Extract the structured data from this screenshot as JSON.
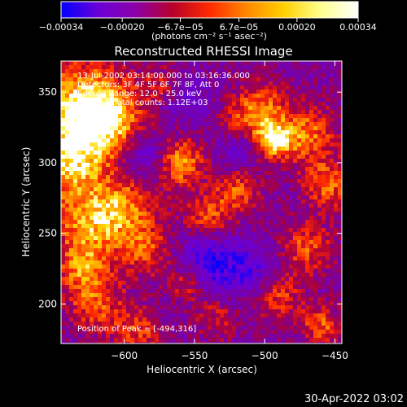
{
  "chart_data": {
    "type": "heatmap",
    "title": "Reconstructed RHESSI Image",
    "xlabel": "Heliocentric X (arcsec)",
    "ylabel": "Heliocentric Y (arcsec)",
    "xlim": [
      -645,
      -445
    ],
    "ylim": [
      172,
      372
    ],
    "x_ticks": [
      {
        "value": -600,
        "label": "−600"
      },
      {
        "value": -550,
        "label": "−550"
      },
      {
        "value": -500,
        "label": "−500"
      },
      {
        "value": -450,
        "label": "−450"
      }
    ],
    "y_ticks": [
      {
        "value": 200,
        "label": "200"
      },
      {
        "value": 250,
        "label": "250"
      },
      {
        "value": 300,
        "label": "300"
      },
      {
        "value": 350,
        "label": "350"
      }
    ],
    "colorbar": {
      "range": [
        -0.00034,
        0.00034
      ],
      "ticks": [
        {
          "value": -0.00034,
          "label": "−0.00034"
        },
        {
          "value": -0.0002,
          "label": "−0.00020"
        },
        {
          "value": -6.7e-05,
          "label": "−6.7e−05"
        },
        {
          "value": 6.7e-05,
          "label": "6.7e−05"
        },
        {
          "value": 0.0002,
          "label": "0.00020"
        },
        {
          "value": 0.00034,
          "label": "0.00034"
        }
      ],
      "units": "(photons cm⁻² s⁻¹ asec⁻²)",
      "colors": [
        "#0000ff",
        "#6a00d8",
        "#8c00a8",
        "#b8002a",
        "#ff2a00",
        "#ff8800",
        "#ffd000",
        "#ffff90",
        "#ffffff"
      ]
    },
    "annotations": [
      "13-Jul-2002 03:14:00.000 to 03:16:36.000",
      "Detectors: 3F 4F 5F 6F 7F 8F, Att 0",
      "Energy Range: 12.0 - 25.0 keV",
      "Clean     Total counts: 1.12E+03"
    ],
    "peak_label": "Position of Peak = [-494,316]",
    "peak": {
      "x": -494,
      "y": 316
    },
    "hot_spots": [
      {
        "x": -630,
        "y": 340,
        "v": 1.0,
        "r": 22
      },
      {
        "x": -638,
        "y": 300,
        "v": 0.85,
        "r": 18
      },
      {
        "x": -610,
        "y": 330,
        "v": 0.7,
        "r": 16
      },
      {
        "x": -625,
        "y": 255,
        "v": 0.75,
        "r": 18
      },
      {
        "x": -600,
        "y": 270,
        "v": 0.6,
        "r": 15
      },
      {
        "x": -585,
        "y": 240,
        "v": 0.55,
        "r": 14
      },
      {
        "x": -560,
        "y": 300,
        "v": 0.8,
        "r": 12
      },
      {
        "x": -540,
        "y": 260,
        "v": 0.6,
        "r": 12
      },
      {
        "x": -555,
        "y": 215,
        "v": 0.55,
        "r": 10
      },
      {
        "x": -520,
        "y": 280,
        "v": 0.55,
        "r": 11
      },
      {
        "x": -515,
        "y": 330,
        "v": 0.45,
        "r": 12
      },
      {
        "x": -494,
        "y": 316,
        "v": 1.0,
        "r": 9
      },
      {
        "x": -500,
        "y": 340,
        "v": 0.55,
        "r": 12
      },
      {
        "x": -470,
        "y": 320,
        "v": 0.7,
        "r": 14
      },
      {
        "x": -455,
        "y": 285,
        "v": 0.65,
        "r": 12
      },
      {
        "x": -470,
        "y": 240,
        "v": 0.55,
        "r": 13
      },
      {
        "x": -490,
        "y": 205,
        "v": 0.5,
        "r": 12
      },
      {
        "x": -460,
        "y": 185,
        "v": 0.6,
        "r": 10
      },
      {
        "x": -620,
        "y": 200,
        "v": 0.6,
        "r": 14
      },
      {
        "x": -590,
        "y": 180,
        "v": 0.5,
        "r": 12
      },
      {
        "x": -630,
        "y": 225,
        "v": 0.55,
        "r": 12
      },
      {
        "x": -575,
        "y": 355,
        "v": 0.35,
        "r": 10
      },
      {
        "x": -535,
        "y": 190,
        "v": 0.4,
        "r": 10
      }
    ],
    "cold_spots": [
      {
        "x": -540,
        "y": 230,
        "v": -0.7,
        "r": 16
      },
      {
        "x": -585,
        "y": 305,
        "v": -0.45,
        "r": 12
      },
      {
        "x": -520,
        "y": 310,
        "v": -0.4,
        "r": 10
      },
      {
        "x": -510,
        "y": 225,
        "v": -0.45,
        "r": 12
      },
      {
        "x": -555,
        "y": 345,
        "v": -0.35,
        "r": 12
      }
    ]
  },
  "footer": {
    "timestamp": "30-Apr-2022 03:02"
  }
}
